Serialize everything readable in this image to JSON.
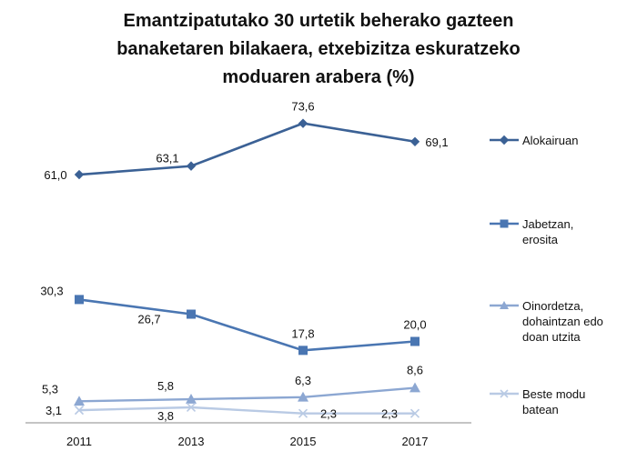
{
  "title_lines": [
    "Emantzipatutako 30 urtetik beherako gazteen",
    "banaketaren bilakaera, etxebizitza eskuratzeko",
    "moduaren arabera (%)"
  ],
  "chart_data": {
    "type": "line",
    "title": "Emantzipatutako 30 urtetik beherako gazteen banaketaren bilakaera, etxebizitza eskuratzeko moduaren arabera (%)",
    "categories": [
      "2011",
      "2013",
      "2015",
      "2017"
    ],
    "ylim": [
      0,
      80
    ],
    "grid": false,
    "legend_position": "right",
    "series": [
      {
        "name_lines": [
          "Alokairuan"
        ],
        "name": "Alokairuan",
        "values": [
          61.0,
          63.1,
          73.6,
          69.1
        ],
        "labels": [
          "61,0",
          "63,1",
          "73,6",
          "69,1"
        ],
        "color": "#3B6195",
        "marker": "diamond"
      },
      {
        "name_lines": [
          "Jabetzan,",
          "erosita"
        ],
        "name": "Jabetzan, erosita",
        "values": [
          30.3,
          26.7,
          17.8,
          20.0
        ],
        "labels": [
          "30,3",
          "26,7",
          "17,8",
          "20,0"
        ],
        "color": "#4A76B2",
        "marker": "square"
      },
      {
        "name_lines": [
          "Oinordetza,",
          "dohaintzan edo",
          "doan utzita"
        ],
        "name": "Oinordetza, dohaintzan edo doan utzita",
        "values": [
          5.3,
          5.8,
          6.3,
          8.6
        ],
        "labels": [
          "5,3",
          "5,8",
          "6,3",
          "8,6"
        ],
        "color": "#8CA7D2",
        "marker": "triangle"
      },
      {
        "name_lines": [
          "Beste modu",
          "batean"
        ],
        "name": "Beste modu batean",
        "values": [
          3.1,
          3.8,
          2.3,
          2.3
        ],
        "labels": [
          "3,1",
          "3,8",
          "2,3",
          "2,3"
        ],
        "color": "#B9CAE4",
        "marker": "x"
      }
    ]
  }
}
